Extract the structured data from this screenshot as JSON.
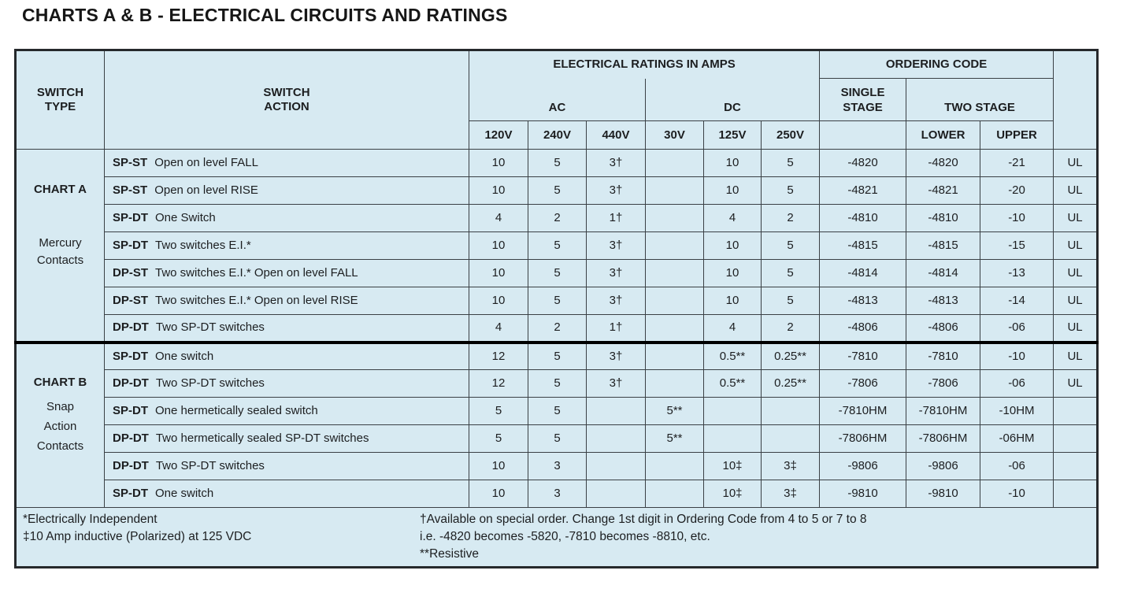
{
  "page_title": "CHARTS A & B - ELECTRICAL CIRCUITS AND RATINGS",
  "colors": {
    "table_bg": "#d7eaf2",
    "grid_line": "#3a4045",
    "outer_border": "#26292c",
    "section_divider": "#000000",
    "text": "#1c1e20"
  },
  "header": {
    "switch_type": "SWITCH\nTYPE",
    "switch_action": "SWITCH\nACTION",
    "electrical_ratings": "ELECTRICAL RATINGS IN AMPS",
    "ordering_code": "ORDERING CODE",
    "ac": "AC",
    "dc": "DC",
    "single_stage": "SINGLE\nSTAGE",
    "two_stage": "TWO STAGE",
    "lower": "LOWER",
    "upper": "UPPER",
    "voltages": [
      "120V",
      "240V",
      "440V",
      "30V",
      "125V",
      "250V"
    ]
  },
  "sections": [
    {
      "name": "CHART A",
      "subtitle": "Mercury\nContacts",
      "rows": [
        {
          "code": "SP-ST",
          "action": "Open on level FALL",
          "values": [
            "10",
            "5",
            "3†",
            "",
            "10",
            "5",
            "-4820",
            "-4820",
            "-21"
          ],
          "ul": "UL"
        },
        {
          "code": "SP-ST",
          "action": "Open on level RISE",
          "values": [
            "10",
            "5",
            "3†",
            "",
            "10",
            "5",
            "-4821",
            "-4821",
            "-20"
          ],
          "ul": "UL"
        },
        {
          "code": "SP-DT",
          "action": "One Switch",
          "values": [
            "4",
            "2",
            "1†",
            "",
            "4",
            "2",
            "-4810",
            "-4810",
            "-10"
          ],
          "ul": "UL"
        },
        {
          "code": "SP-DT",
          "action": "Two switches E.I.*",
          "values": [
            "10",
            "5",
            "3†",
            "",
            "10",
            "5",
            "-4815",
            "-4815",
            "-15"
          ],
          "ul": "UL"
        },
        {
          "code": "DP-ST",
          "action": "Two switches E.I.* Open on level FALL",
          "values": [
            "10",
            "5",
            "3†",
            "",
            "10",
            "5",
            "-4814",
            "-4814",
            "-13"
          ],
          "ul": "UL"
        },
        {
          "code": "DP-ST",
          "action": "Two switches E.I.* Open on level RISE",
          "values": [
            "10",
            "5",
            "3†",
            "",
            "10",
            "5",
            "-4813",
            "-4813",
            "-14"
          ],
          "ul": "UL"
        },
        {
          "code": "DP-DT",
          "action": "Two SP-DT switches",
          "values": [
            "4",
            "2",
            "1†",
            "",
            "4",
            "2",
            "-4806",
            "-4806",
            "-06"
          ],
          "ul": "UL"
        }
      ]
    },
    {
      "name": "CHART B",
      "subtitle": "Snap\nAction\nContacts",
      "rows": [
        {
          "code": "SP-DT",
          "action": "One switch",
          "values": [
            "12",
            "5",
            "3†",
            "",
            "0.5**",
            "0.25**",
            "-7810",
            "-7810",
            "-10"
          ],
          "ul": "UL"
        },
        {
          "code": "DP-DT",
          "action": "Two SP-DT switches",
          "values": [
            "12",
            "5",
            "3†",
            "",
            "0.5**",
            "0.25**",
            "-7806",
            "-7806",
            "-06"
          ],
          "ul": "UL"
        },
        {
          "code": "SP-DT",
          "action": "One hermetically sealed switch",
          "values": [
            "5",
            "5",
            "",
            "5**",
            "",
            "",
            "-7810HM",
            "-7810HM",
            "-10HM"
          ],
          "ul": ""
        },
        {
          "code": "DP-DT",
          "action": "Two hermetically sealed SP-DT switches",
          "values": [
            "5",
            "5",
            "",
            "5**",
            "",
            "",
            "-7806HM",
            "-7806HM",
            "-06HM"
          ],
          "ul": ""
        },
        {
          "code": "DP-DT",
          "action": "Two SP-DT switches",
          "values": [
            "10",
            "3",
            "",
            "",
            "10‡",
            "3‡",
            "-9806",
            "-9806",
            "-06"
          ],
          "ul": ""
        },
        {
          "code": "SP-DT",
          "action": "One switch",
          "values": [
            "10",
            "3",
            "",
            "",
            "10‡",
            "3‡",
            "-9810",
            "-9810",
            "-10"
          ],
          "ul": ""
        }
      ]
    }
  ],
  "footnotes": {
    "left": "*Electrically Independent\n‡10 Amp inductive (Polarized) at 125 VDC",
    "right": "†Available on special order. Change 1st digit in Ordering Code from 4 to 5 or 7 to 8\ni.e. -4820 becomes -5820, -7810 becomes -8810, etc.\n**Resistive"
  }
}
